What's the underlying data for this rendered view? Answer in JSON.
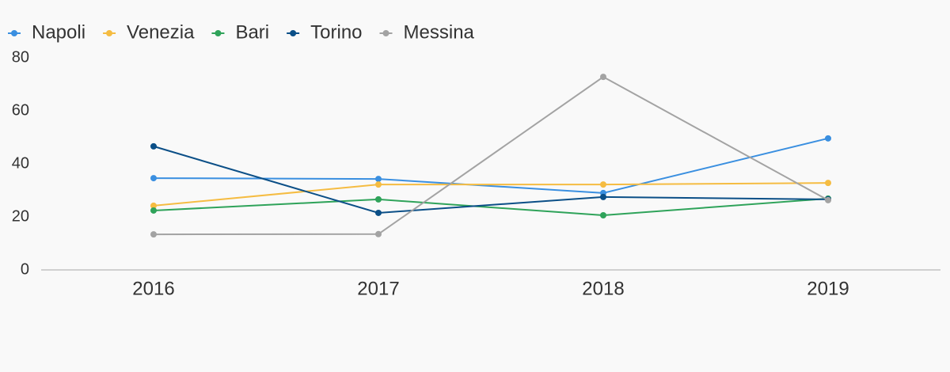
{
  "chart_data": {
    "type": "line",
    "categories": [
      "2016",
      "2017",
      "2018",
      "2019"
    ],
    "series": [
      {
        "name": "Napoli",
        "color": "#3a8fe0",
        "values": [
          34.6,
          34.3,
          29,
          49.6
        ]
      },
      {
        "name": "Venezia",
        "color": "#f5bc42",
        "values": [
          24.2,
          32.2,
          32.2,
          32.8
        ]
      },
      {
        "name": "Bari",
        "color": "#2fa35a",
        "values": [
          22.4,
          26.6,
          20.6,
          26.9
        ]
      },
      {
        "name": "Torino",
        "color": "#0b4f87",
        "values": [
          46.6,
          21.5,
          27.5,
          26.6
        ]
      },
      {
        "name": "Messina",
        "color": "#a3a3a3",
        "values": [
          13.4,
          13.5,
          72.8,
          26.3
        ]
      }
    ],
    "ylim": [
      0,
      80
    ],
    "yticks": [
      0,
      20,
      40,
      60,
      80
    ],
    "grid": false
  }
}
